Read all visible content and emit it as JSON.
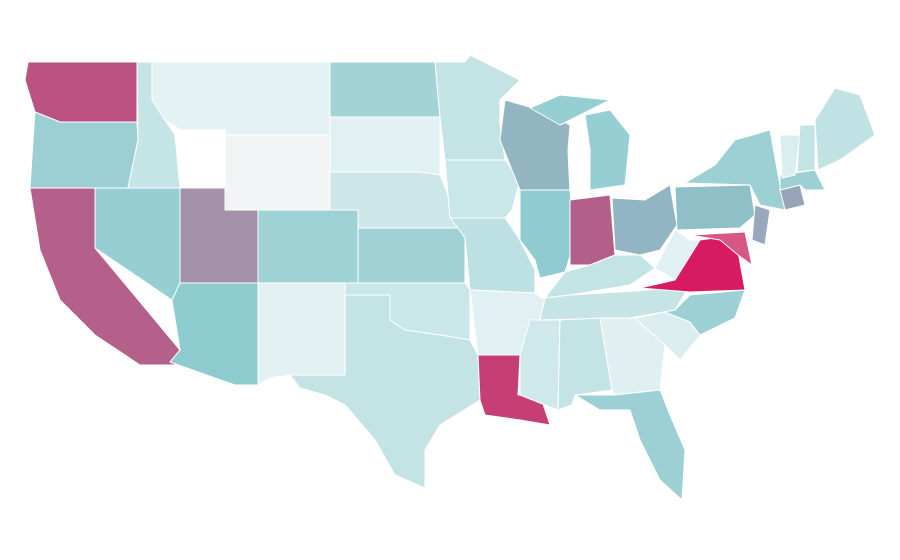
{
  "map": {
    "fills": [
      "#bb5282",
      "#9ccfd3",
      "#b5608a",
      "#96cfd3",
      "#c4e4e6",
      "#e4f2f3",
      "#f2f3f5",
      "#a492ab",
      "#8ecbcf",
      "#9fd2d5",
      "#e3f1f2",
      "#a3d3d6",
      "#e1f0f2",
      "#cde7e9",
      "#9fd1d5",
      "#c9e6e8",
      "#c4e3e5",
      "#c4e3e5",
      "#c9e6e8",
      "#bde1e3",
      "#e1f0f2",
      "#c63f74",
      "#93b5c2",
      "#8fcbd0",
      "#b2608a",
      "#95cfd4",
      "#95cfd4",
      "#91b5c2",
      "#c4e3e5",
      "#c6e4e6",
      "#cfe8ea",
      "#c4e3e5",
      "#e0f0f1",
      "#9cd0d4",
      "#daedef",
      "#9cd0d4",
      "#e1f0f2",
      "#d81b60",
      "#8fc0c7",
      "#9cd0d4",
      "#d45883",
      "#9aa8bd",
      "#9aa4b8",
      "#9cd0d4",
      "#d9eeef",
      "#c4e3e5",
      "#c1e2e4"
    ]
  }
}
